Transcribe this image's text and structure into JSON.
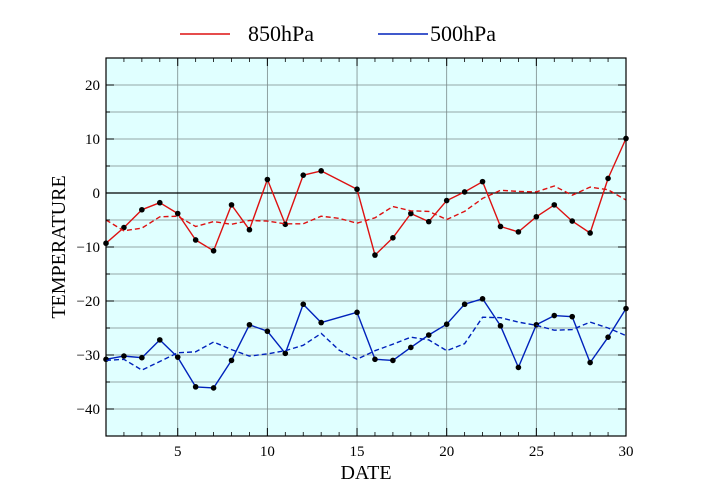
{
  "chart_data": {
    "type": "line",
    "xlabel": "DATE",
    "ylabel": "TEMPERATURE",
    "xlim": [
      1,
      30
    ],
    "ylim": [
      -45,
      25
    ],
    "x_ticks": [
      5,
      10,
      15,
      20,
      25,
      30
    ],
    "y_ticks": [
      -40,
      -30,
      -20,
      -10,
      0,
      10,
      20
    ],
    "grid": true,
    "zero_line": true,
    "legend_position": "top",
    "background": "#e0ffff",
    "series": [
      {
        "name": "850hPa",
        "color": "#dd1111",
        "style": "solid",
        "markers": true,
        "x": [
          1,
          2,
          3,
          4,
          5,
          6,
          7,
          8,
          9,
          10,
          11,
          12,
          13,
          15,
          16,
          17,
          18,
          19,
          20,
          21,
          22,
          23,
          24,
          25,
          26,
          27,
          28,
          29,
          30
        ],
        "y": [
          -9.3,
          -6.4,
          -3.1,
          -1.8,
          -3.8,
          -8.7,
          -10.7,
          -2.2,
          -6.8,
          2.5,
          -5.8,
          3.3,
          4.1,
          0.7,
          -11.5,
          -8.3,
          -3.8,
          -5.3,
          -1.4,
          0.2,
          2.1,
          -6.2,
          -7.2,
          -4.4,
          -2.2,
          -5.2,
          -7.4,
          2.7,
          10.1
        ]
      },
      {
        "name": "",
        "color": "#dd1111",
        "style": "dashed",
        "markers": false,
        "x": [
          1,
          2,
          3,
          4,
          5,
          6,
          7,
          8,
          9,
          10,
          11,
          12,
          13,
          14,
          15,
          16,
          17,
          18,
          19,
          20,
          21,
          22,
          23,
          24,
          25,
          26,
          27,
          28,
          29,
          30
        ],
        "y": [
          -5.0,
          -7.0,
          -6.5,
          -4.4,
          -4.3,
          -6.2,
          -5.3,
          -5.8,
          -5.1,
          -5.2,
          -5.7,
          -5.7,
          -4.3,
          -4.7,
          -5.6,
          -4.6,
          -2.5,
          -3.3,
          -3.4,
          -4.9,
          -3.4,
          -1.0,
          0.5,
          0.3,
          0.2,
          1.3,
          -0.4,
          1.1,
          0.6,
          -1.3
        ]
      },
      {
        "name": "500hPa",
        "color": "#0022bb",
        "style": "solid",
        "markers": true,
        "x": [
          1,
          2,
          3,
          4,
          5,
          6,
          7,
          8,
          9,
          10,
          11,
          12,
          13,
          15,
          16,
          17,
          18,
          19,
          20,
          21,
          22,
          23,
          24,
          25,
          26,
          27,
          28,
          29,
          30
        ],
        "y": [
          -30.8,
          -30.2,
          -30.5,
          -27.2,
          -30.4,
          -35.9,
          -36.1,
          -31.0,
          -24.4,
          -25.6,
          -29.7,
          -20.6,
          -24.0,
          -22.1,
          -30.8,
          -31.0,
          -28.6,
          -26.3,
          -24.3,
          -20.6,
          -19.6,
          -24.6,
          -32.3,
          -24.4,
          -22.7,
          -22.9,
          -31.4,
          -26.7,
          -21.4
        ]
      },
      {
        "name": "",
        "color": "#0022bb",
        "style": "dashed",
        "markers": false,
        "x": [
          1,
          2,
          3,
          4,
          5,
          6,
          7,
          8,
          9,
          10,
          11,
          12,
          13,
          14,
          15,
          16,
          17,
          18,
          19,
          20,
          21,
          22,
          23,
          24,
          25,
          26,
          27,
          28,
          29,
          30
        ],
        "y": [
          -31.0,
          -30.8,
          -32.8,
          -31.2,
          -29.6,
          -29.4,
          -27.6,
          -29.0,
          -30.2,
          -29.8,
          -29.2,
          -28.2,
          -26.0,
          -29.1,
          -30.8,
          -29.2,
          -28.0,
          -26.7,
          -27.2,
          -29.2,
          -27.9,
          -23.0,
          -23.1,
          -23.9,
          -24.5,
          -25.4,
          -25.3,
          -23.9,
          -25.0,
          -26.4
        ]
      }
    ]
  }
}
